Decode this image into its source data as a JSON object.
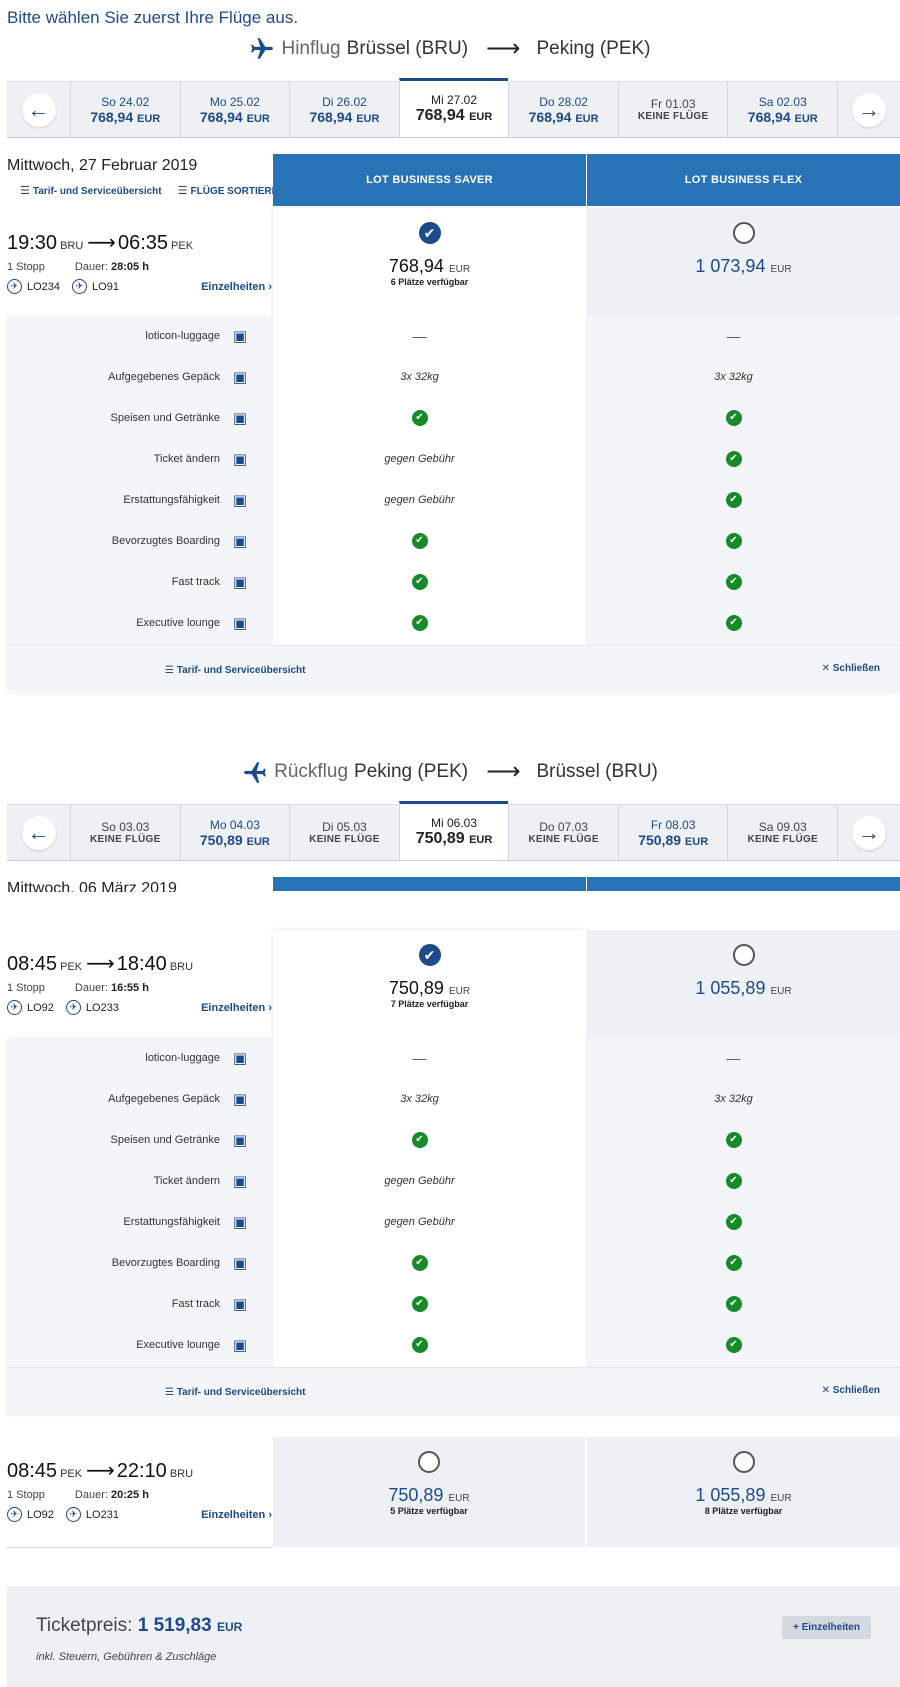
{
  "intro": "Bitte wählen Sie zuerst Ihre Flüge aus.",
  "colors": {
    "brand": "#1d4a8a",
    "fare_header": "#2873b5",
    "check": "#178a2a"
  },
  "outbound": {
    "kind": "Hinflug",
    "from": "Brüssel (BRU)",
    "to": "Peking (PEK)",
    "dates": [
      {
        "label": "So 24.02",
        "price": "768,94",
        "cur": "EUR"
      },
      {
        "label": "Mo 25.02",
        "price": "768,94",
        "cur": "EUR"
      },
      {
        "label": "Di 26.02",
        "price": "768,94",
        "cur": "EUR"
      },
      {
        "label": "Mi 27.02",
        "price": "768,94",
        "cur": "EUR",
        "selected": true
      },
      {
        "label": "Do 28.02",
        "price": "768,94",
        "cur": "EUR"
      },
      {
        "label": "Fr 01.03",
        "price": "KEINE FLÜGE",
        "cur": ""
      },
      {
        "label": "Sa 02.03",
        "price": "768,94",
        "cur": "EUR"
      }
    ],
    "day_title": "Mittwoch, 27 Februar 2019",
    "tool_fare": "Tarif- und Serviceübersicht",
    "tool_sort": "FLÜGE SORTIEREN",
    "fare_saver": "LOT BUSINESS SAVER",
    "fare_flex": "LOT BUSINESS FLEX",
    "flight": {
      "dep": "19:30",
      "dep_code": "BRU",
      "arr": "06:35",
      "arr_code": "PEK",
      "stops": "1 Stopp",
      "dur_label": "Dauer:",
      "dur": "28:05 h",
      "leg1": "LO234",
      "leg2": "LO91",
      "details": "Einzelheiten"
    },
    "saver_price": "768,94",
    "saver_seats": "6 Plätze verfügbar",
    "flex_price": "1 073,94",
    "cur": "EUR"
  },
  "services": [
    {
      "label": "loticon-luggage",
      "icon": "luggage-icon",
      "saver": "—",
      "flex": "—"
    },
    {
      "label": "Aufgegebenes Gepäck",
      "icon": "checked-bag-icon",
      "saver": "3x 32kg",
      "flex": "3x 32kg"
    },
    {
      "label": "Speisen und Getränke",
      "icon": "meal-icon",
      "saver": "✔",
      "flex": "✔"
    },
    {
      "label": "Ticket ändern",
      "icon": "calendar-change-icon",
      "saver": "gegen Gebühr",
      "flex": "✔"
    },
    {
      "label": "Erstattungsfähigkeit",
      "icon": "refund-ticket-icon",
      "saver": "gegen Gebühr",
      "flex": "✔"
    },
    {
      "label": "Bevorzugtes Boarding",
      "icon": "priority-boarding-icon",
      "saver": "✔",
      "flex": "✔"
    },
    {
      "label": "Fast track",
      "icon": "fast-track-icon",
      "saver": "✔",
      "flex": "✔"
    },
    {
      "label": "Executive lounge",
      "icon": "lounge-icon",
      "saver": "✔",
      "flex": "✔"
    }
  ],
  "svc_footer_left": "Tarif- und Serviceübersicht",
  "svc_footer_right": "Schließen",
  "return": {
    "kind": "Rückflug",
    "from": "Peking (PEK)",
    "to": "Brüssel (BRU)",
    "dates": [
      {
        "label": "So 03.03",
        "price": "KEINE FLÜGE",
        "cur": ""
      },
      {
        "label": "Mo 04.03",
        "price": "750,89",
        "cur": "EUR"
      },
      {
        "label": "Di 05.03",
        "price": "KEINE FLÜGE",
        "cur": ""
      },
      {
        "label": "Mi 06.03",
        "price": "750,89",
        "cur": "EUR",
        "selected": true
      },
      {
        "label": "Do 07.03",
        "price": "KEINE FLÜGE",
        "cur": ""
      },
      {
        "label": "Fr 08.03",
        "price": "750,89",
        "cur": "EUR"
      },
      {
        "label": "Sa 09.03",
        "price": "KEINE FLÜGE",
        "cur": ""
      }
    ],
    "day_title": "Mittwoch, 06 März 2019",
    "flight1": {
      "dep": "08:45",
      "dep_code": "PEK",
      "arr": "18:40",
      "arr_code": "BRU",
      "stops": "1 Stopp",
      "dur_label": "Dauer:",
      "dur": "16:55 h",
      "leg1": "LO92",
      "leg2": "LO233",
      "details": "Einzelheiten",
      "saver_price": "750,89",
      "saver_seats": "7 Plätze verfügbar",
      "flex_price": "1 055,89"
    },
    "flight2": {
      "dep": "08:45",
      "dep_code": "PEK",
      "arr": "22:10",
      "arr_code": "BRU",
      "stops": "1 Stopp",
      "dur_label": "Dauer:",
      "dur": "20:25 h",
      "leg1": "LO92",
      "leg2": "LO231",
      "details": "Einzelheiten",
      "saver_price": "750,89",
      "saver_seats": "5 Plätze verfügbar",
      "flex_price": "1 055,89",
      "flex_seats": "8 Plätze verfügbar"
    },
    "cur": "EUR"
  },
  "ticket": {
    "label": "Ticketpreis:",
    "price": "1 519,83",
    "cur": "EUR",
    "tax": "inkl. Steuern, Gebühren & Zuschläge",
    "details_btn": "+ Einzelheiten"
  }
}
